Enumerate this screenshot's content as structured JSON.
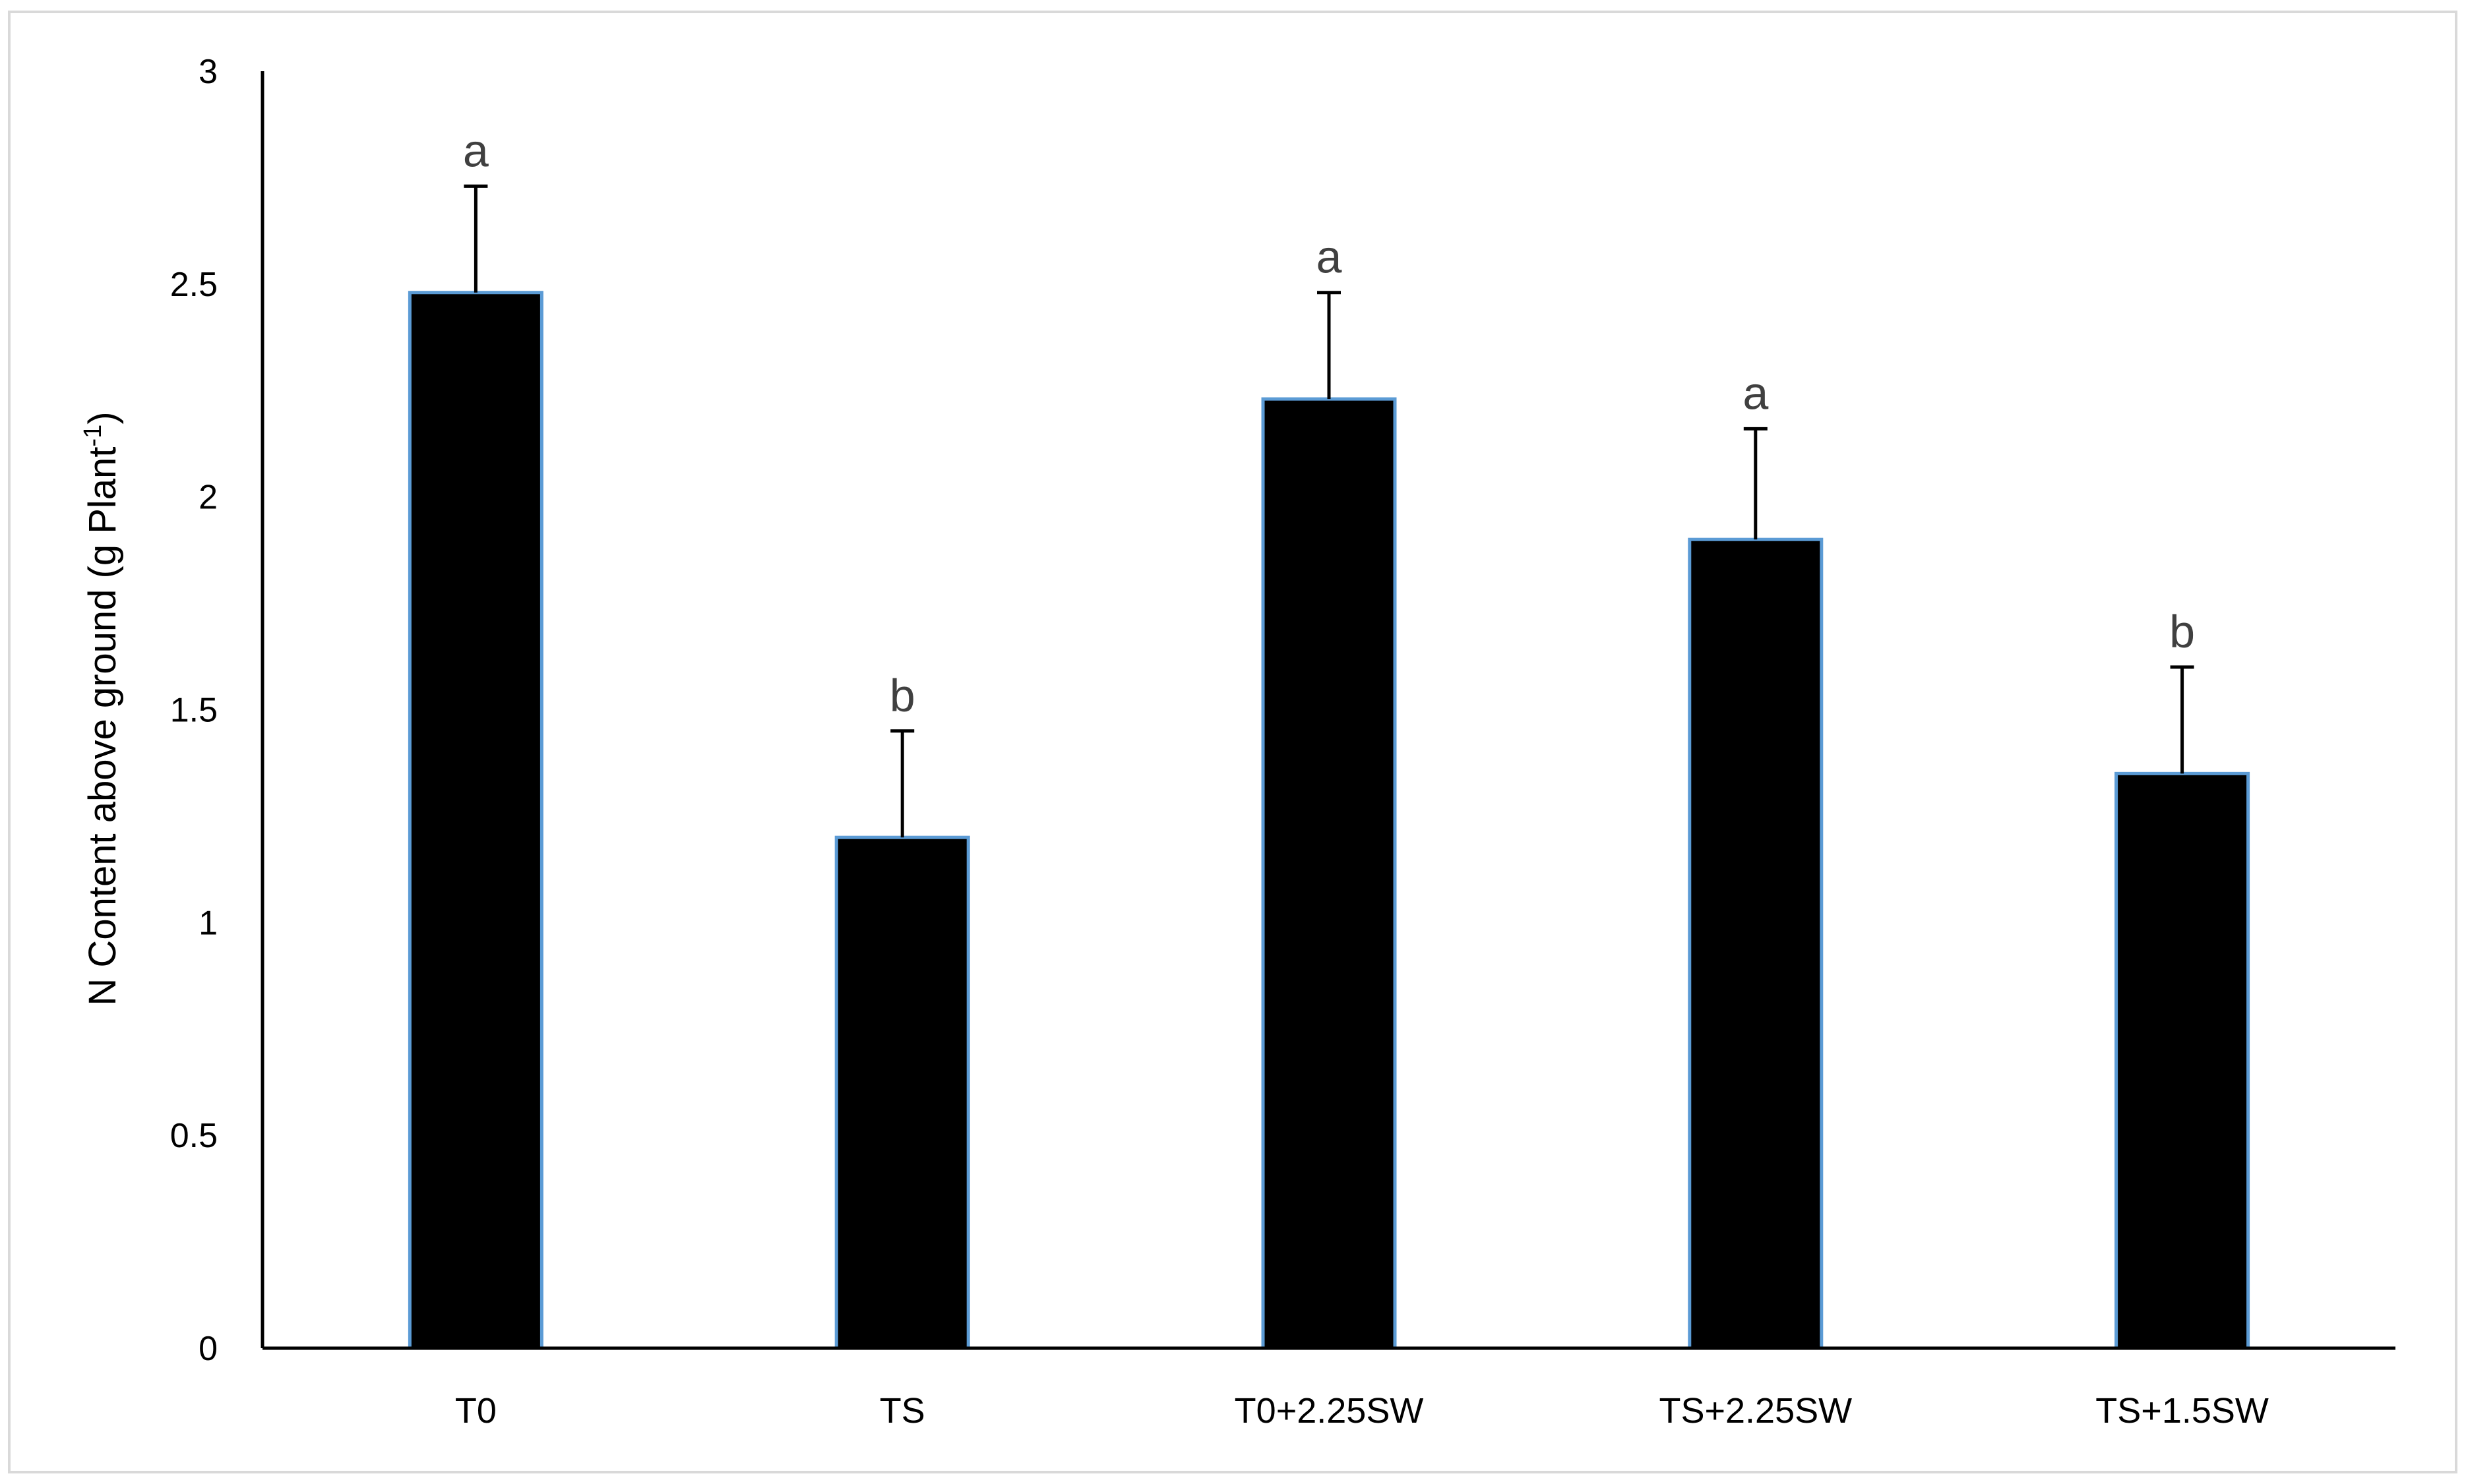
{
  "chart_data": {
    "type": "bar",
    "title": "",
    "xlabel": "",
    "ylabel": {
      "main": "N Content above ground (g Plant",
      "superscript": "-1",
      "close": ")"
    },
    "ylim": [
      0,
      3
    ],
    "yticks": [
      "0",
      "0.5",
      "1",
      "1.5",
      "2",
      "2.5",
      "3"
    ],
    "categories": [
      "T0",
      "TS",
      "T0+2.25SW",
      "TS+2.25SW",
      "TS+1.5SW"
    ],
    "values": [
      2.48,
      1.2,
      2.23,
      1.9,
      1.35
    ],
    "errors": [
      0.25,
      0.25,
      0.25,
      0.26,
      0.25
    ],
    "significance": [
      "a",
      "b",
      "a",
      "a",
      "b"
    ],
    "grid": false,
    "legend": "none",
    "colors": {
      "bar_fill": "#000000",
      "bar_outline": "#5b9bd5",
      "axis": "#000000",
      "significance_text": "#404040",
      "frame": "#d9d9d9"
    }
  }
}
